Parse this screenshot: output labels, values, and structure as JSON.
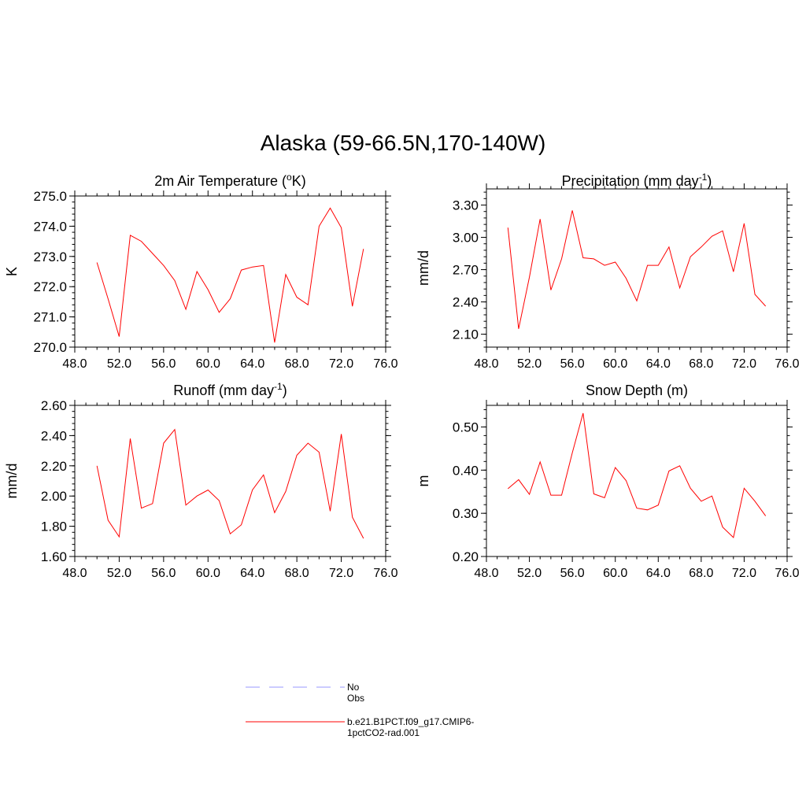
{
  "title": "Alaska (59-66.5N,170-140W)",
  "colors": {
    "series": "#ff0000",
    "obs": "#9999ff",
    "axis": "#000000"
  },
  "legend": [
    {
      "label": "No Obs",
      "style": "dashed",
      "color": "#9999ff"
    },
    {
      "label": "b.e21.B1PCT.f09_g17.CMIP6-1pctCO2-rad.001",
      "style": "solid",
      "color": "#ff0000"
    }
  ],
  "chart_data": [
    {
      "type": "line",
      "title": "2m Air Temperature (",
      "title_sup": "o",
      "title_tail": "K)",
      "ylabel": "K",
      "xlim": [
        48,
        76
      ],
      "ylim": [
        270,
        275
      ],
      "xticks": [
        "48.0",
        "52.0",
        "56.0",
        "60.0",
        "64.0",
        "68.0",
        "72.0",
        "76.0"
      ],
      "xtick_values": [
        48,
        52,
        56,
        60,
        64,
        68,
        72,
        76
      ],
      "yticks": [
        "270.0",
        "271.0",
        "272.0",
        "273.0",
        "274.0",
        "275.0"
      ],
      "ytick_values": [
        270,
        271,
        272,
        273,
        274,
        275
      ],
      "y_minor_step": 0.2,
      "x": [
        50,
        51,
        52,
        53,
        54,
        55,
        56,
        57,
        58,
        59,
        60,
        61,
        62,
        63,
        64,
        65,
        66,
        67,
        68,
        69,
        70,
        71,
        72,
        73,
        74
      ],
      "series": [
        {
          "name": "b.e21.B1PCT.f09_g17.CMIP6-1pctCO2-rad.001",
          "values": [
            272.8,
            271.6,
            270.35,
            273.7,
            273.5,
            273.1,
            272.7,
            272.2,
            271.25,
            272.5,
            271.9,
            271.15,
            271.6,
            272.55,
            272.65,
            272.7,
            270.15,
            272.4,
            271.65,
            271.4,
            274.0,
            274.6,
            273.95,
            271.35,
            273.25
          ]
        }
      ]
    },
    {
      "type": "line",
      "title": "Precipitation (mm day",
      "title_sup": "-1",
      "title_tail": ")",
      "ylabel": "mm/d",
      "xlim": [
        48,
        76
      ],
      "ylim": [
        1.98,
        3.45
      ],
      "xticks": [
        "48.0",
        "52.0",
        "56.0",
        "60.0",
        "64.0",
        "68.0",
        "72.0",
        "76.0"
      ],
      "xtick_values": [
        48,
        52,
        56,
        60,
        64,
        68,
        72,
        76
      ],
      "yticks": [
        "2.10",
        "2.40",
        "2.70",
        "3.00",
        "3.30"
      ],
      "ytick_values": [
        2.1,
        2.4,
        2.7,
        3.0,
        3.3
      ],
      "y_minor_step": 0.06,
      "x": [
        50,
        51,
        52,
        53,
        54,
        55,
        56,
        57,
        58,
        59,
        60,
        61,
        62,
        63,
        64,
        65,
        66,
        67,
        68,
        69,
        70,
        71,
        72,
        73,
        74
      ],
      "series": [
        {
          "name": "b.e21.B1PCT.f09_g17.CMIP6-1pctCO2-rad.001",
          "values": [
            3.09,
            2.15,
            2.63,
            3.17,
            2.51,
            2.8,
            3.25,
            2.81,
            2.8,
            2.74,
            2.77,
            2.62,
            2.41,
            2.74,
            2.74,
            2.91,
            2.53,
            2.82,
            2.91,
            3.01,
            3.06,
            2.68,
            3.13,
            2.47,
            2.36
          ]
        }
      ]
    },
    {
      "type": "line",
      "title": "Runoff (mm day",
      "title_sup": "-1",
      "title_tail": ")",
      "ylabel": "mm/d",
      "xlim": [
        48,
        76
      ],
      "ylim": [
        1.6,
        2.6
      ],
      "xticks": [
        "48.0",
        "52.0",
        "56.0",
        "60.0",
        "64.0",
        "68.0",
        "72.0",
        "76.0"
      ],
      "xtick_values": [
        48,
        52,
        56,
        60,
        64,
        68,
        72,
        76
      ],
      "yticks": [
        "1.60",
        "1.80",
        "2.00",
        "2.20",
        "2.40",
        "2.60"
      ],
      "ytick_values": [
        1.6,
        1.8,
        2.0,
        2.2,
        2.4,
        2.6
      ],
      "y_minor_step": 0.04,
      "x": [
        50,
        51,
        52,
        53,
        54,
        55,
        56,
        57,
        58,
        59,
        60,
        61,
        62,
        63,
        64,
        65,
        66,
        67,
        68,
        69,
        70,
        71,
        72,
        73,
        74
      ],
      "series": [
        {
          "name": "b.e21.B1PCT.f09_g17.CMIP6-1pctCO2-rad.001",
          "values": [
            2.2,
            1.84,
            1.73,
            2.38,
            1.92,
            1.95,
            2.35,
            2.44,
            1.94,
            2.0,
            2.04,
            1.97,
            1.75,
            1.81,
            2.04,
            2.14,
            1.89,
            2.03,
            2.27,
            2.35,
            2.29,
            1.9,
            2.41,
            1.86,
            1.72
          ]
        }
      ]
    },
    {
      "type": "line",
      "title": "Snow Depth (m)",
      "title_sup": "",
      "title_tail": "",
      "ylabel": "m",
      "xlim": [
        48,
        76
      ],
      "ylim": [
        0.2,
        0.55
      ],
      "xticks": [
        "48.0",
        "52.0",
        "56.0",
        "60.0",
        "64.0",
        "68.0",
        "72.0",
        "76.0"
      ],
      "xtick_values": [
        48,
        52,
        56,
        60,
        64,
        68,
        72,
        76
      ],
      "yticks": [
        "0.20",
        "0.30",
        "0.40",
        "0.50"
      ],
      "ytick_values": [
        0.2,
        0.3,
        0.4,
        0.5
      ],
      "y_minor_step": 0.02,
      "x": [
        50,
        51,
        52,
        53,
        54,
        55,
        56,
        57,
        58,
        59,
        60,
        61,
        62,
        63,
        64,
        65,
        66,
        67,
        68,
        69,
        70,
        71,
        72,
        73,
        74
      ],
      "series": [
        {
          "name": "b.e21.B1PCT.f09_g17.CMIP6-1pctCO2-rad.001",
          "values": [
            0.357,
            0.378,
            0.344,
            0.419,
            0.342,
            0.342,
            0.44,
            0.532,
            0.345,
            0.336,
            0.406,
            0.376,
            0.312,
            0.308,
            0.319,
            0.398,
            0.41,
            0.358,
            0.328,
            0.34,
            0.268,
            0.244,
            0.358,
            0.328,
            0.294
          ]
        }
      ]
    }
  ]
}
